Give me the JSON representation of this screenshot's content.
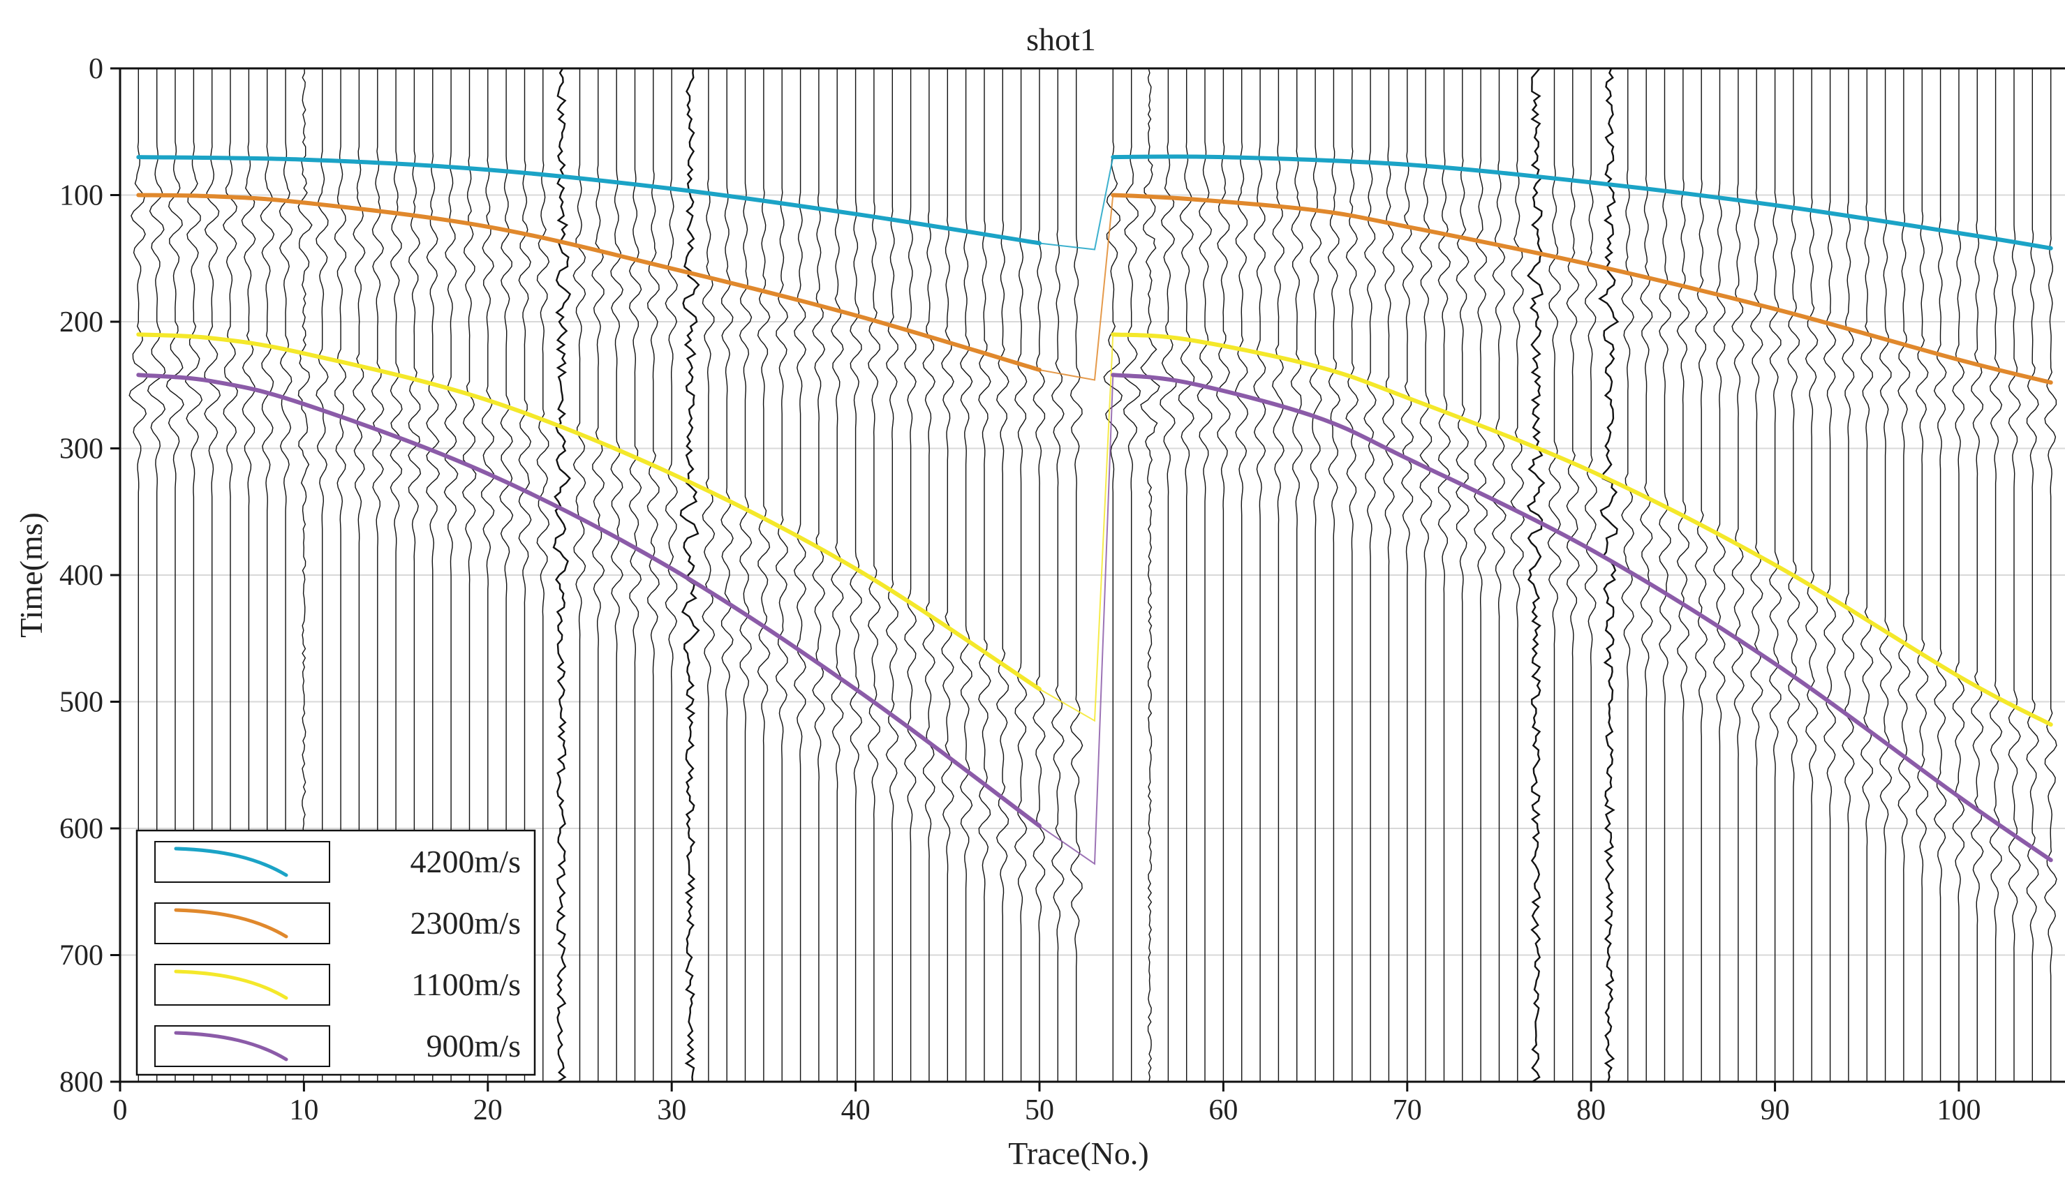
{
  "chart_data": {
    "type": "line",
    "title": "shot1",
    "xlabel": "Trace(No.)",
    "ylabel": "Time(ms)",
    "xlim": [
      0,
      106
    ],
    "ylim": [
      800,
      0
    ],
    "x_ticks": [
      0,
      10,
      20,
      30,
      40,
      50,
      60,
      70,
      80,
      90,
      100
    ],
    "y_ticks": [
      0,
      100,
      200,
      300,
      400,
      500,
      600,
      700,
      800
    ],
    "grid": true,
    "legend_position": "bottom-left",
    "trace_count": 102,
    "shot_groups": [
      {
        "name": "left-spread",
        "trace_start": 1,
        "trace_end": 52
      },
      {
        "name": "right-spread",
        "trace_start": 54,
        "trace_end": 105
      }
    ],
    "series": [
      {
        "name": "4200m/s",
        "color": "#1BA3C6",
        "x": [
          1,
          10,
          20,
          30,
          40,
          50,
          53,
          54,
          60,
          70,
          80,
          90,
          100,
          105
        ],
        "values": [
          70,
          72,
          80,
          95,
          115,
          138,
          143,
          70,
          70,
          76,
          90,
          108,
          130,
          142
        ]
      },
      {
        "name": "2300m/s",
        "color": "#E0882C",
        "x": [
          1,
          5,
          10,
          20,
          30,
          40,
          50,
          53,
          54,
          58,
          65,
          70,
          80,
          90,
          100,
          105
        ],
        "values": [
          100,
          101,
          106,
          125,
          158,
          195,
          238,
          246,
          100,
          103,
          112,
          125,
          155,
          190,
          230,
          248
        ]
      },
      {
        "name": "1100m/s",
        "color": "#F4E82A",
        "x": [
          1,
          5,
          10,
          20,
          30,
          40,
          50,
          53,
          54,
          58,
          65,
          70,
          80,
          90,
          100,
          105
        ],
        "values": [
          210,
          213,
          225,
          262,
          320,
          395,
          490,
          515,
          210,
          214,
          235,
          260,
          318,
          392,
          480,
          518
        ]
      },
      {
        "name": "900m/s",
        "color": "#8B5BA8",
        "x": [
          1,
          5,
          10,
          20,
          30,
          40,
          50,
          53,
          54,
          58,
          65,
          70,
          80,
          90,
          100,
          105
        ],
        "values": [
          242,
          247,
          265,
          320,
          395,
          490,
          598,
          628,
          242,
          248,
          275,
          308,
          380,
          470,
          575,
          625
        ]
      }
    ]
  }
}
